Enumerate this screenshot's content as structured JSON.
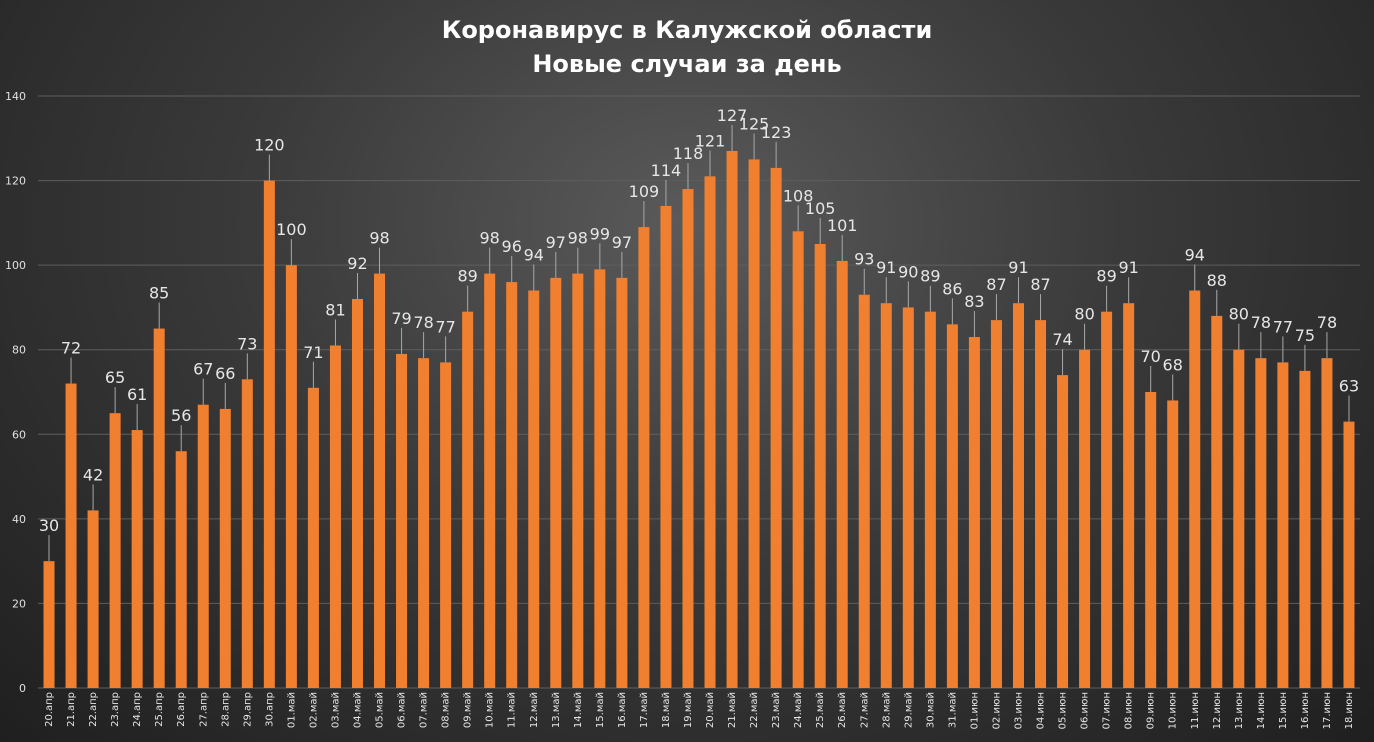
{
  "chart_data": {
    "type": "bar",
    "title": "Коронавирус в Калужской области",
    "subtitle": "Новые случаи за день",
    "ylim": [
      0,
      140
    ],
    "yticks": [
      0,
      20,
      40,
      60,
      80,
      100,
      120,
      140
    ],
    "grid": true,
    "bar_color": "#f07f2f",
    "categories": [
      "20.апр",
      "21.апр",
      "22.апр",
      "23.апр",
      "24.апр",
      "25.апр",
      "26.апр",
      "27.апр",
      "28.апр",
      "29.апр",
      "30.апр",
      "01.май",
      "02.май",
      "03.май",
      "04.май",
      "05.май",
      "06.май",
      "07.май",
      "08.май",
      "09.май",
      "10.май",
      "11.май",
      "12.май",
      "13.май",
      "14.май",
      "15.май",
      "16.май",
      "17.май",
      "18.май",
      "19.май",
      "20.май",
      "21.май",
      "22.май",
      "23.май",
      "24.май",
      "25.май",
      "26.май",
      "27.май",
      "28.май",
      "29.май",
      "30.май",
      "31.май",
      "01.июн",
      "02.июн",
      "03.июн",
      "04.июн",
      "05.июн",
      "06.июн",
      "07.июн",
      "08.июн",
      "09.июн",
      "10.июн",
      "11.июн",
      "12.июн",
      "13.июн",
      "14.июн",
      "15.июн",
      "16.июн",
      "17.июн",
      "18.июн"
    ],
    "values": [
      30,
      72,
      42,
      65,
      61,
      85,
      56,
      67,
      66,
      73,
      120,
      100,
      71,
      81,
      92,
      98,
      79,
      78,
      77,
      89,
      98,
      96,
      94,
      97,
      98,
      99,
      97,
      109,
      114,
      118,
      121,
      127,
      125,
      123,
      108,
      105,
      101,
      93,
      91,
      90,
      89,
      86,
      83,
      87,
      91,
      87,
      74,
      80,
      89,
      91,
      70,
      68,
      94,
      88,
      80,
      78,
      77,
      75,
      78,
      63
    ]
  }
}
